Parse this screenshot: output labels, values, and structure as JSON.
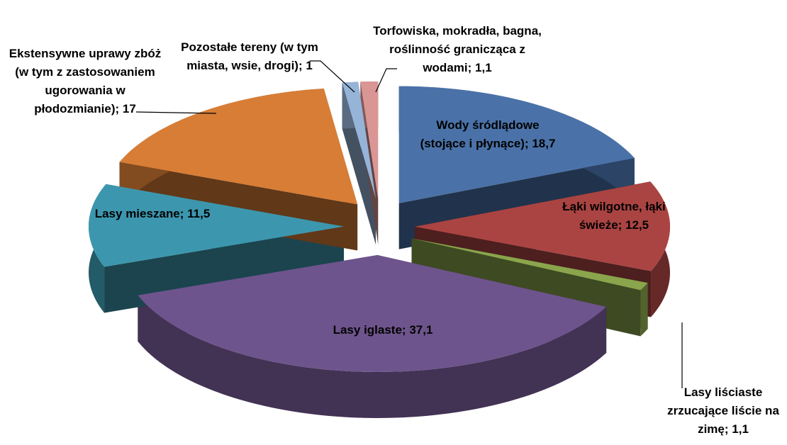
{
  "chart_data": {
    "type": "pie3d",
    "categories": [
      "Wody śródlądowe (stojące i płynące)",
      "Łąki wilgotne, łąki świeże",
      "Lasy liściaste zrzucające liście na zimę",
      "Lasy iglaste",
      "Lasy mieszane",
      "Ekstensywne uprawy zbóż (w tym z zastosowaniem ugorowania w płodozmianie)",
      "Pozostałe tereny (w tym miasta, wsie, drogi)",
      "Torfowiska, mokradła, bagna, roślinność granicząca z wodami"
    ],
    "values": [
      18.7,
      12.5,
      1.1,
      37.1,
      11.5,
      17,
      1,
      1.1
    ],
    "value_labels": [
      "18,7",
      "12,5",
      "1,1",
      "37,1",
      "11,5",
      "17",
      "1",
      "1,1"
    ],
    "separator": "; ",
    "colors": [
      "#4a72a8",
      "#aa4442",
      "#8aa54c",
      "#6e548c",
      "#3c97ae",
      "#d87d35",
      "#96b3d8",
      "#d99694"
    ]
  }
}
